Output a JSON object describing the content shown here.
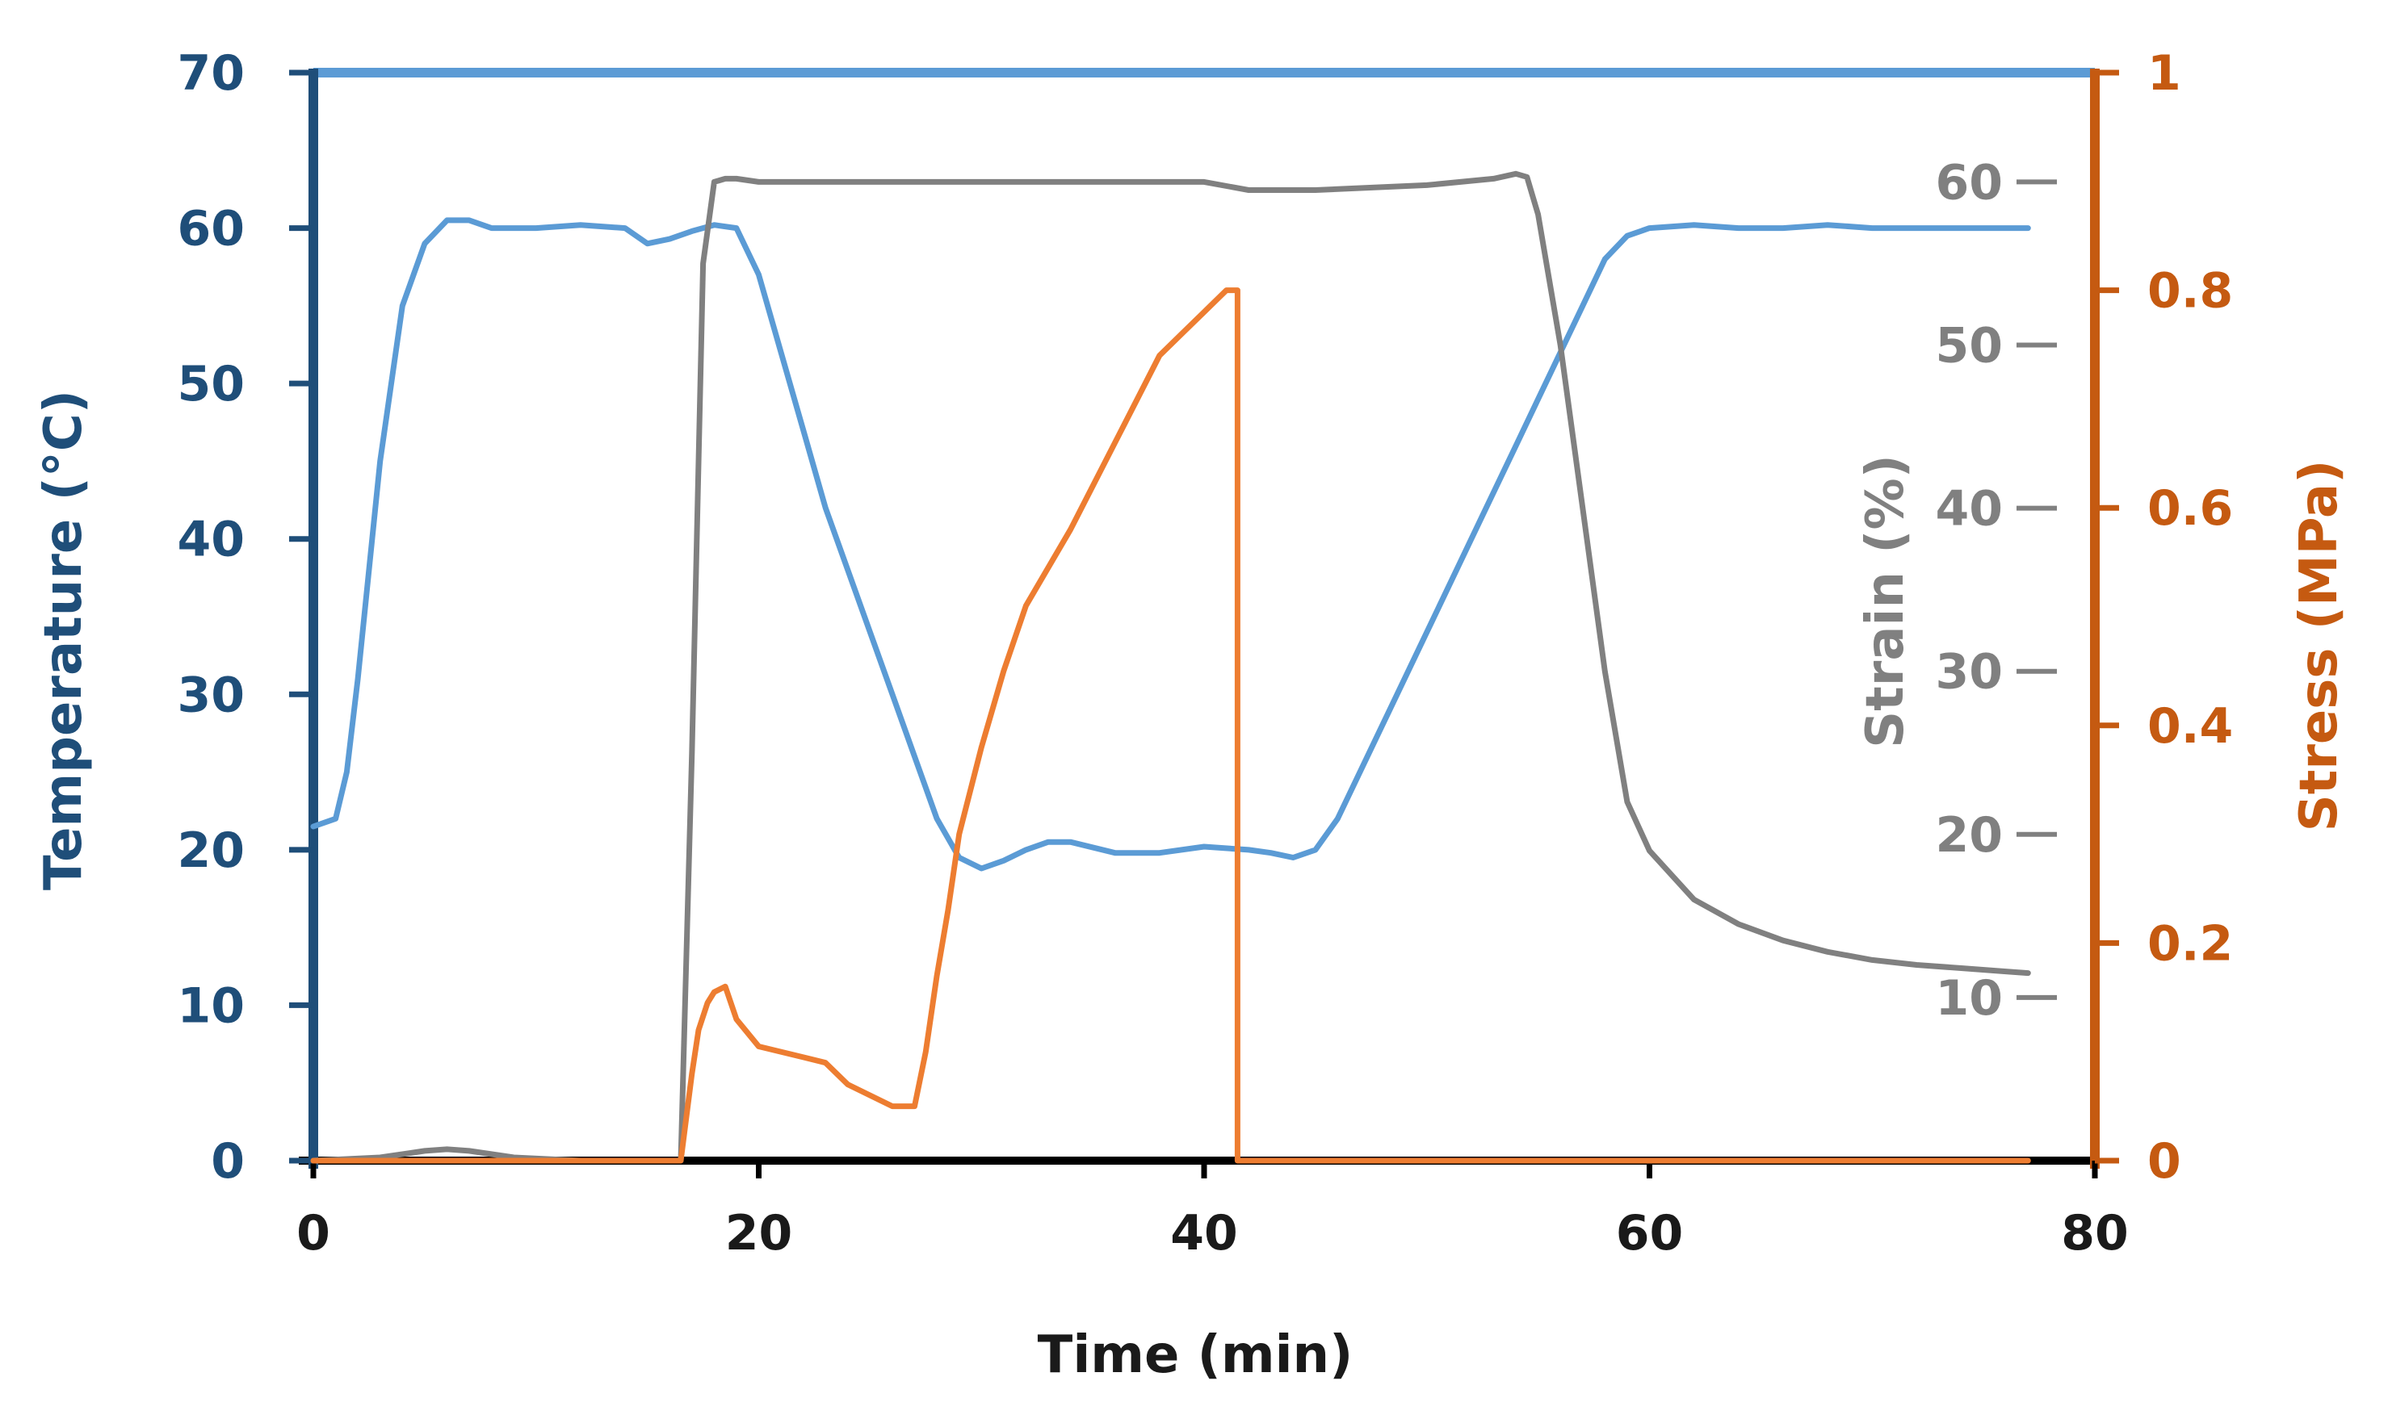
{
  "chart_data": {
    "type": "line",
    "title": "",
    "xlabel": "Time (min)",
    "xlim": [
      0,
      80
    ],
    "x_ticks": [
      0,
      20,
      40,
      60,
      80
    ],
    "axes": {
      "temperature": {
        "label": "Temperature (°C)",
        "side": "left",
        "ylim": [
          0,
          70
        ],
        "ticks": [
          0,
          10,
          20,
          30,
          40,
          50,
          60,
          70
        ],
        "color": "#1f4e79"
      },
      "strain": {
        "label": "Strain (%)",
        "side": "right-inner",
        "ylim": [
          0,
          66.7
        ],
        "ticks": [
          10,
          20,
          30,
          40,
          50,
          60
        ],
        "color": "#808080"
      },
      "stress": {
        "label": "Stress (MPa)",
        "side": "right",
        "ylim": [
          0,
          1
        ],
        "ticks": [
          0,
          0.2,
          0.4,
          0.6,
          0.8,
          1
        ],
        "tick_labels": [
          "0",
          "0.2",
          "0.4",
          "0.6",
          "0.8",
          "1"
        ],
        "color": "#c55a11"
      }
    },
    "series": [
      {
        "name": "Temperature",
        "axis": "temperature",
        "color": "#5b9bd5",
        "x": [
          0,
          1,
          1.5,
          2,
          3,
          4,
          5,
          6,
          7,
          8,
          9,
          10,
          12,
          14,
          15,
          16,
          17,
          18,
          19,
          20,
          21,
          22,
          23,
          24,
          25,
          26,
          27,
          28,
          29,
          30,
          31,
          32,
          33,
          34,
          36,
          38,
          40,
          42,
          43,
          44,
          45,
          46,
          48,
          50,
          52,
          54,
          56,
          57,
          58,
          59,
          60,
          62,
          64,
          66,
          68,
          70,
          72,
          74,
          76,
          77
        ],
        "y": [
          21.5,
          22,
          25,
          31,
          45,
          55,
          59,
          60.5,
          60.5,
          60,
          60,
          60,
          60.2,
          60,
          59,
          59.3,
          59.8,
          60.2,
          60,
          57,
          52,
          47,
          42,
          38,
          34,
          30,
          26,
          22,
          19.5,
          18.8,
          19.3,
          20,
          20.5,
          20.5,
          19.8,
          19.8,
          20.2,
          20,
          19.8,
          19.5,
          20,
          22,
          28,
          34,
          40,
          46,
          52,
          55,
          58,
          59.5,
          60,
          60.2,
          60,
          60,
          60.2,
          60,
          60,
          60,
          60,
          60
        ]
      },
      {
        "name": "Strain",
        "axis": "strain",
        "color": "#808080",
        "x": [
          0,
          3,
          5,
          6,
          7,
          9,
          12,
          16.5,
          17,
          17.5,
          18,
          18.5,
          19,
          20,
          25,
          30,
          35,
          40,
          42,
          45,
          50,
          53,
          54,
          54.5,
          55,
          56,
          57,
          58,
          59,
          60,
          62,
          64,
          66,
          68,
          70,
          72,
          74,
          76,
          77
        ],
        "y": [
          0,
          0.2,
          0.6,
          0.7,
          0.6,
          0.2,
          0,
          0,
          25,
          55,
          60,
          60.2,
          60.2,
          60,
          60,
          60,
          60,
          60,
          59.5,
          59.5,
          59.8,
          60.2,
          60.5,
          60.3,
          58,
          50,
          40,
          30,
          22,
          19,
          16,
          14.5,
          13.5,
          12.8,
          12.3,
          12,
          11.8,
          11.6,
          11.5
        ]
      },
      {
        "name": "Stress",
        "axis": "stress",
        "color": "#ed7d31",
        "x": [
          0,
          16.5,
          17,
          17.3,
          17.7,
          18,
          18.5,
          19,
          20,
          22,
          23,
          24,
          25,
          26,
          27,
          27.5,
          28,
          28.5,
          29,
          30,
          31,
          32,
          34,
          36,
          37,
          38,
          39,
          40,
          41,
          41.5,
          41.5,
          42,
          60,
          77
        ],
        "y": [
          0,
          0,
          0.08,
          0.12,
          0.145,
          0.155,
          0.16,
          0.13,
          0.105,
          0.095,
          0.09,
          0.07,
          0.06,
          0.05,
          0.05,
          0.1,
          0.17,
          0.23,
          0.3,
          0.38,
          0.45,
          0.51,
          0.58,
          0.66,
          0.7,
          0.74,
          0.76,
          0.78,
          0.8,
          0.8,
          0,
          0,
          0,
          0
        ]
      }
    ]
  }
}
